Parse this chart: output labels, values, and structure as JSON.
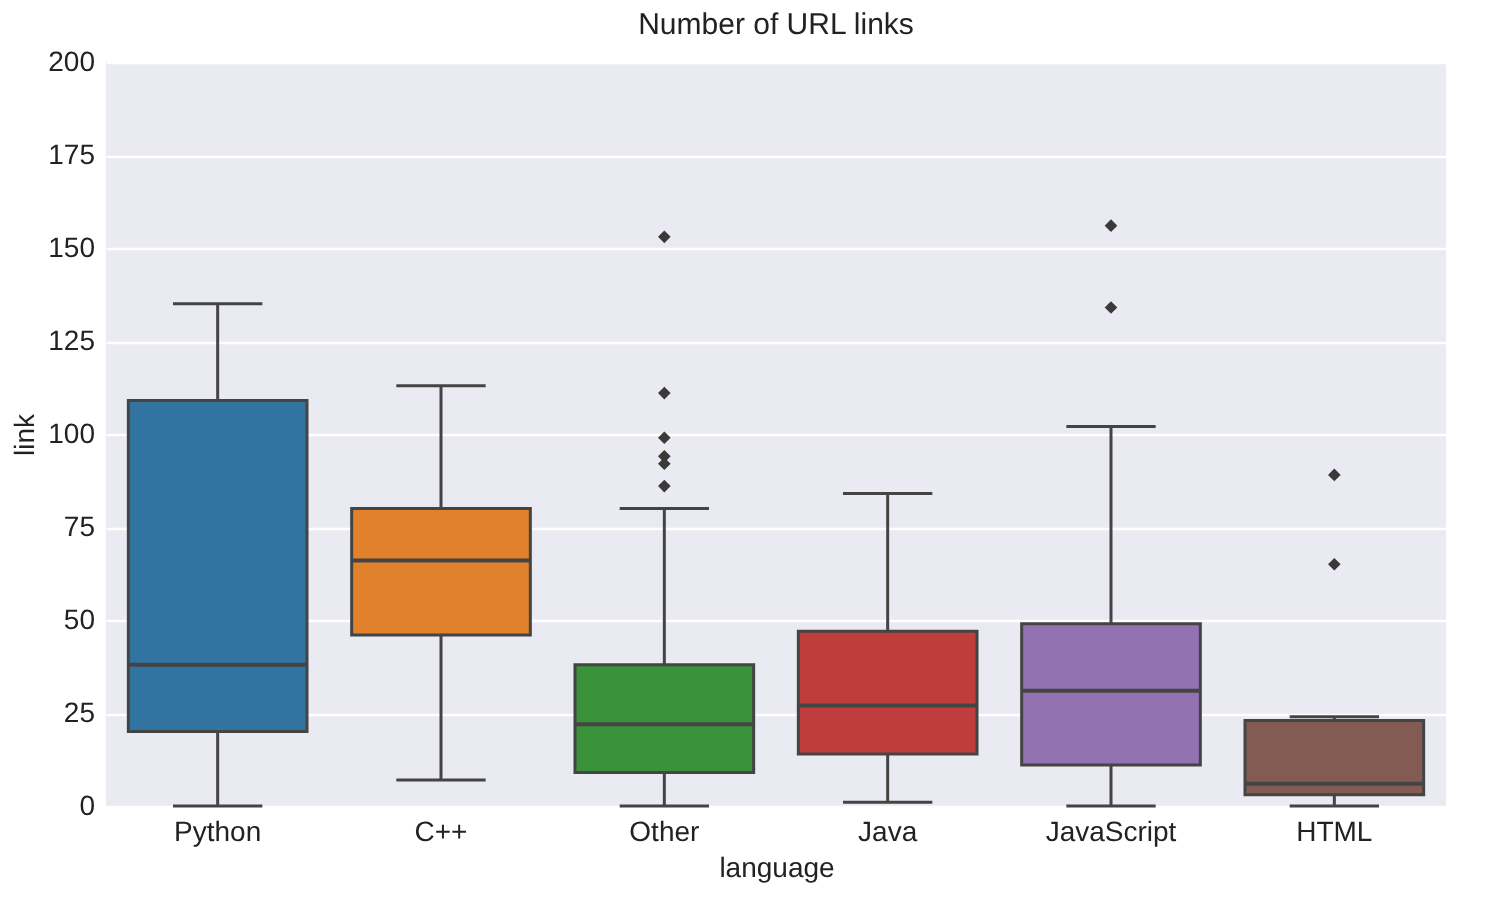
{
  "chart_data": {
    "type": "box",
    "title": "Number of URL links",
    "xlabel": "language",
    "ylabel": "link",
    "categories": [
      "Python",
      "C++",
      "Other",
      "Java",
      "JavaScript",
      "HTML"
    ],
    "colors": [
      "#3274a1",
      "#e1812c",
      "#3a923a",
      "#c03d3e",
      "#9372b2",
      "#845b53"
    ],
    "boxes": [
      {
        "low": 0,
        "q1": 20,
        "median": 38,
        "q3": 109,
        "high": 135
      },
      {
        "low": 7,
        "q1": 46,
        "median": 66,
        "q3": 80,
        "high": 113
      },
      {
        "low": 0,
        "q1": 9,
        "median": 22,
        "q3": 38,
        "high": 80,
        "outliers": [
          153,
          111,
          99,
          94,
          92,
          86
        ]
      },
      {
        "low": 1,
        "q1": 14,
        "median": 27,
        "q3": 47,
        "high": 84
      },
      {
        "low": 0,
        "q1": 11,
        "median": 31,
        "q3": 49,
        "high": 102,
        "outliers": [
          156,
          134
        ]
      },
      {
        "low": 0,
        "q1": 3,
        "median": 6,
        "q3": 23,
        "high": 24,
        "outliers": [
          89,
          65
        ]
      }
    ],
    "ylim": [
      0,
      200
    ],
    "yticks": [
      0,
      25,
      50,
      75,
      100,
      125,
      150,
      175,
      200
    ],
    "grid": "y",
    "marker": "diamond"
  }
}
